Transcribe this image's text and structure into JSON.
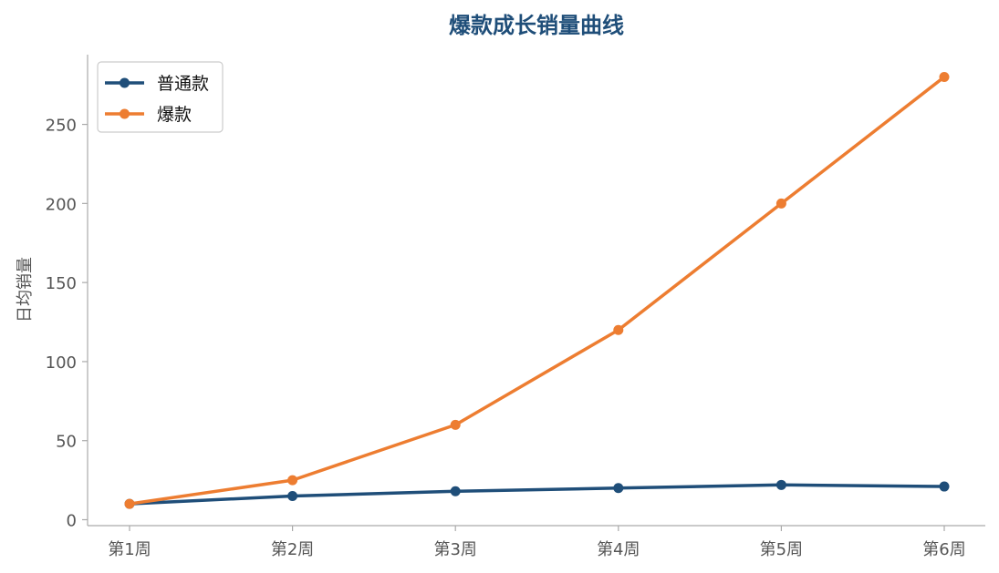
{
  "chart_data": {
    "type": "line",
    "title": "爆款成长销量曲线",
    "xlabel": "",
    "ylabel": "日均销量",
    "categories": [
      "第1周",
      "第2周",
      "第3周",
      "第4周",
      "第5周",
      "第6周"
    ],
    "ylim": [
      0,
      295
    ],
    "yticks": [
      0,
      50,
      100,
      150,
      200,
      250
    ],
    "grid": false,
    "legend_position": "top-left",
    "series": [
      {
        "name": "普通款",
        "color": "#1f4e79",
        "values": [
          10,
          15,
          18,
          20,
          22,
          21
        ]
      },
      {
        "name": "爆款",
        "color": "#ed7d31",
        "values": [
          10,
          25,
          60,
          120,
          200,
          280
        ]
      }
    ]
  }
}
